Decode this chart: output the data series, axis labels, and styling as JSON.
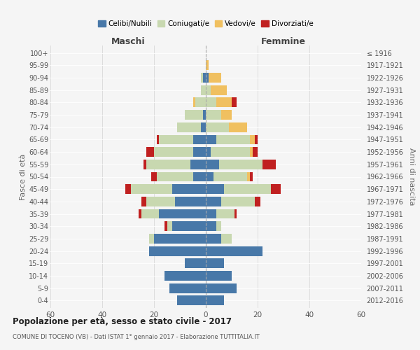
{
  "age_groups": [
    "0-4",
    "5-9",
    "10-14",
    "15-19",
    "20-24",
    "25-29",
    "30-34",
    "35-39",
    "40-44",
    "45-49",
    "50-54",
    "55-59",
    "60-64",
    "65-69",
    "70-74",
    "75-79",
    "80-84",
    "85-89",
    "90-94",
    "95-99",
    "100+"
  ],
  "birth_years": [
    "2012-2016",
    "2007-2011",
    "2002-2006",
    "1997-2001",
    "1992-1996",
    "1987-1991",
    "1982-1986",
    "1977-1981",
    "1972-1976",
    "1967-1971",
    "1962-1966",
    "1957-1961",
    "1952-1956",
    "1947-1951",
    "1942-1946",
    "1937-1941",
    "1932-1936",
    "1927-1931",
    "1922-1926",
    "1917-1921",
    "≤ 1916"
  ],
  "maschi": {
    "celibi": [
      11,
      14,
      16,
      8,
      22,
      20,
      13,
      18,
      12,
      13,
      5,
      6,
      5,
      5,
      2,
      1,
      0,
      0,
      1,
      0,
      0
    ],
    "coniugati": [
      0,
      0,
      0,
      0,
      0,
      2,
      2,
      7,
      11,
      16,
      14,
      17,
      15,
      13,
      9,
      7,
      4,
      2,
      1,
      0,
      0
    ],
    "vedovi": [
      0,
      0,
      0,
      0,
      0,
      0,
      0,
      0,
      0,
      0,
      0,
      0,
      0,
      0,
      0,
      0,
      1,
      0,
      0,
      0,
      0
    ],
    "divorziati": [
      0,
      0,
      0,
      0,
      0,
      0,
      1,
      1,
      2,
      2,
      2,
      1,
      3,
      1,
      0,
      0,
      0,
      0,
      0,
      0,
      0
    ]
  },
  "femmine": {
    "nubili": [
      7,
      12,
      10,
      7,
      22,
      6,
      4,
      4,
      6,
      7,
      3,
      5,
      2,
      4,
      0,
      0,
      0,
      0,
      1,
      0,
      0
    ],
    "coniugate": [
      0,
      0,
      0,
      0,
      0,
      4,
      2,
      7,
      13,
      18,
      13,
      17,
      15,
      13,
      9,
      6,
      4,
      2,
      0,
      0,
      0
    ],
    "vedove": [
      0,
      0,
      0,
      0,
      0,
      0,
      0,
      0,
      0,
      0,
      1,
      0,
      1,
      2,
      7,
      4,
      6,
      6,
      5,
      1,
      0
    ],
    "divorziate": [
      0,
      0,
      0,
      0,
      0,
      0,
      0,
      1,
      2,
      4,
      1,
      5,
      2,
      1,
      0,
      0,
      2,
      0,
      0,
      0,
      0
    ]
  },
  "colors": {
    "celibi": "#4878a8",
    "coniugati": "#c8d8b0",
    "vedovi": "#f0c060",
    "divorziati": "#c02020"
  },
  "legend_labels": [
    "Celibi/Nubili",
    "Coniugati/e",
    "Vedovi/e",
    "Divorziati/e"
  ],
  "title": "Popolazione per età, sesso e stato civile - 2017",
  "subtitle": "COMUNE DI TOCENO (VB) - Dati ISTAT 1° gennaio 2017 - Elaborazione TUTTITALIA.IT",
  "xlabel_left": "Maschi",
  "xlabel_right": "Femmine",
  "ylabel_left": "Fasce di età",
  "ylabel_right": "Anni di nascita",
  "xlim": 60,
  "bg_color": "#f5f5f5",
  "grid_color": "#dddddd"
}
